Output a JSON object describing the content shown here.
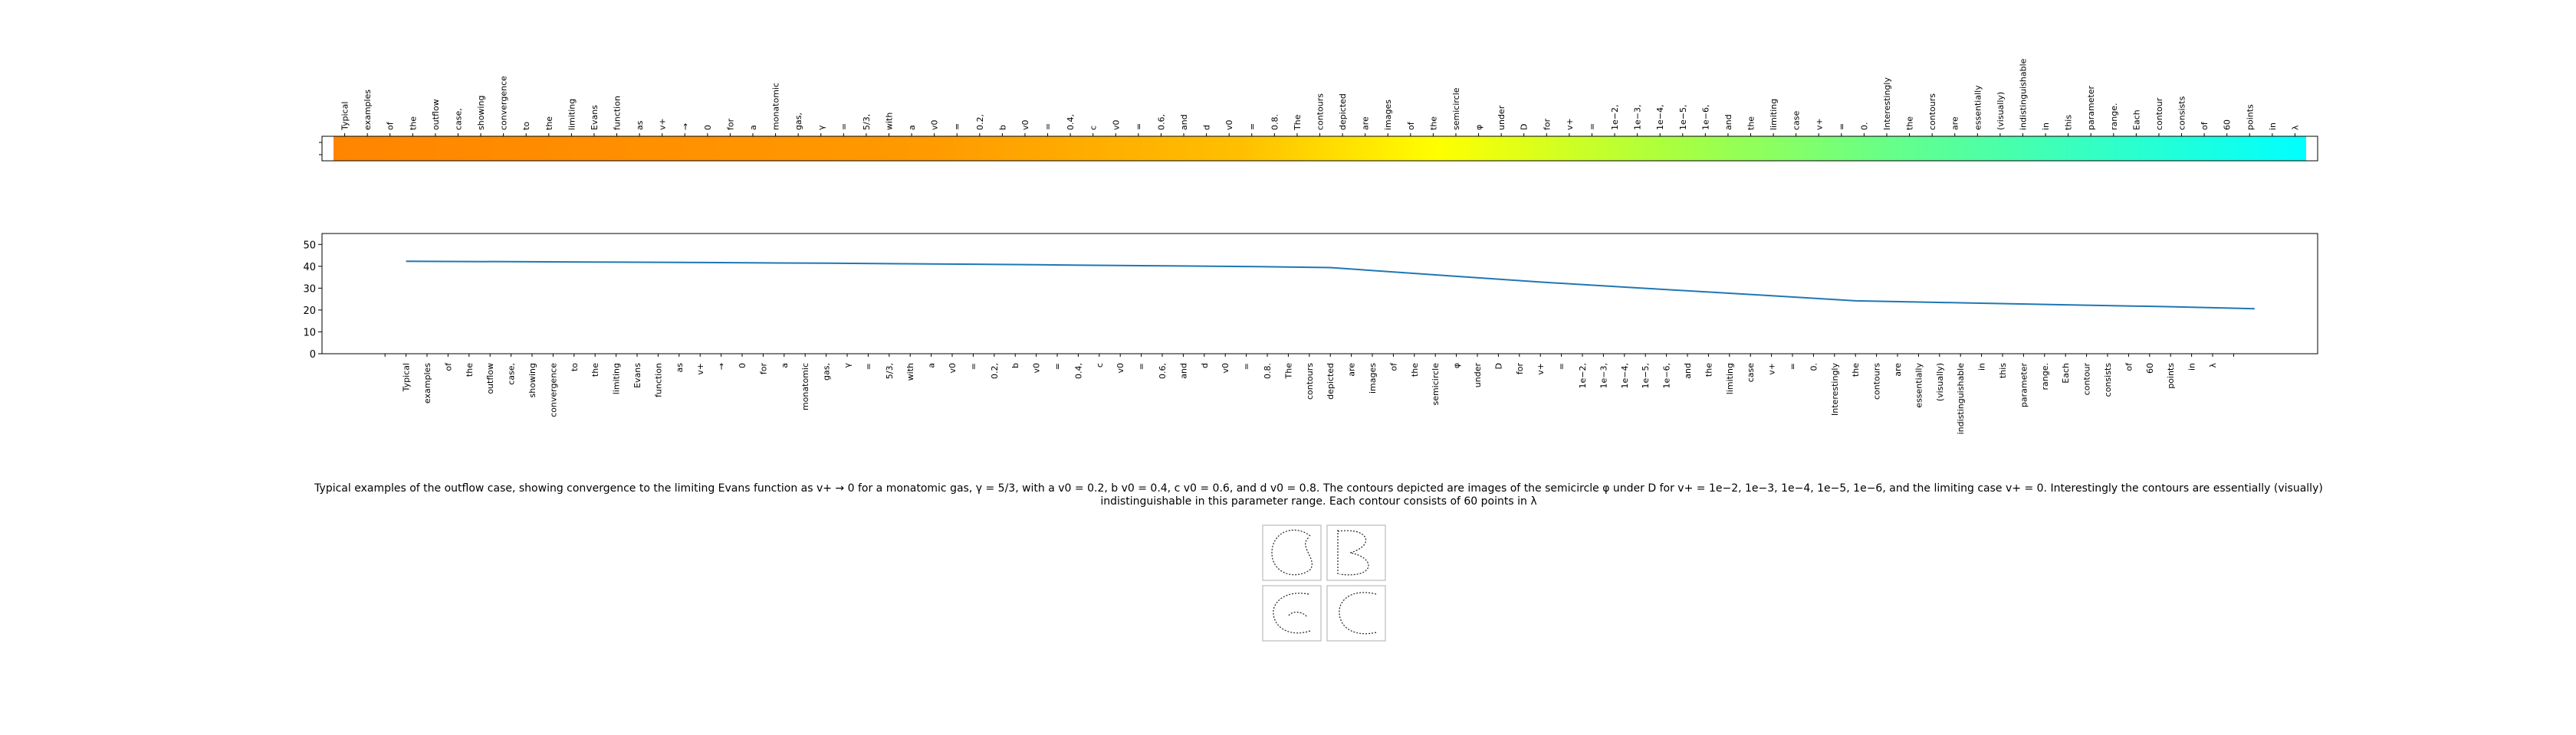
{
  "caption": "Typical examples of the outflow case, showing convergence to the limiting Evans function as v+ → 0 for a monatomic gas, γ = 5/3, with a v0 = 0.2, b v0 = 0.4, c v0 = 0.6, and d v0 = 0.8. The contours depicted are images of the semicircle φ under D for v+ = 1e−2, 1e−3, 1e−4, 1e−5, 1e−6, and the limiting case v+ = 0. Interestingly the contours are essentially (visually) indistinguishable in this parameter range. Each contour consists of 60 points in λ",
  "words": [
    "Typical",
    "examples",
    "of",
    "the",
    "outflow",
    "case,",
    "showing",
    "convergence",
    "to",
    "the",
    "limiting",
    "Evans",
    "function",
    "as",
    "v+",
    "→",
    "0",
    "for",
    "a",
    "monatomic",
    "gas,",
    "γ",
    "=",
    "5/3,",
    "with",
    "a",
    "v0",
    "=",
    "0.2,",
    "b",
    "v0",
    "=",
    "0.4,",
    "c",
    "v0",
    "=",
    "0.6,",
    "and",
    "d",
    "v0",
    "=",
    "0.8.",
    "The",
    "contours",
    "depicted",
    "are",
    "images",
    "of",
    "the",
    "semicircle",
    "φ",
    "under",
    "D",
    "for",
    "v+",
    "=",
    "1e−2,",
    "1e−3,",
    "1e−4,",
    "1e−5,",
    "1e−6,",
    "and",
    "the",
    "limiting",
    "case",
    "v+",
    "=",
    "0.",
    "Interestingly",
    "the",
    "contours",
    "are",
    "essentially",
    "(visually)",
    "indistinguishable",
    "in",
    "this",
    "parameter",
    "range.",
    "Each",
    "contour",
    "consists",
    "of",
    "60",
    "points",
    "in",
    "λ"
  ],
  "colors": {
    "line": "#1f77b4",
    "axis": "#000000"
  },
  "chart_data": [
    {
      "type": "heatmap",
      "colormap": "orange-yellow-green-cyan",
      "categories_source": "words",
      "grid": false
    },
    {
      "type": "line",
      "categories_source": "words",
      "series": [
        {
          "values": [
            42.3,
            42.1,
            41.9,
            41.7,
            41.4,
            41.1,
            40.7,
            40.3,
            39.9,
            39.4,
            36.1,
            32.8,
            29.9,
            27.1,
            24.2,
            23.3,
            22.4,
            21.5,
            20.6
          ]
        }
      ],
      "sample_index": [
        0,
        5,
        10,
        15,
        20,
        25,
        30,
        35,
        40,
        44,
        49,
        54,
        59,
        64,
        69,
        74,
        79,
        84,
        88
      ],
      "ylim": [
        0,
        55
      ],
      "yticks": [
        0,
        10,
        20,
        30,
        40,
        50
      ],
      "grid": false
    }
  ]
}
